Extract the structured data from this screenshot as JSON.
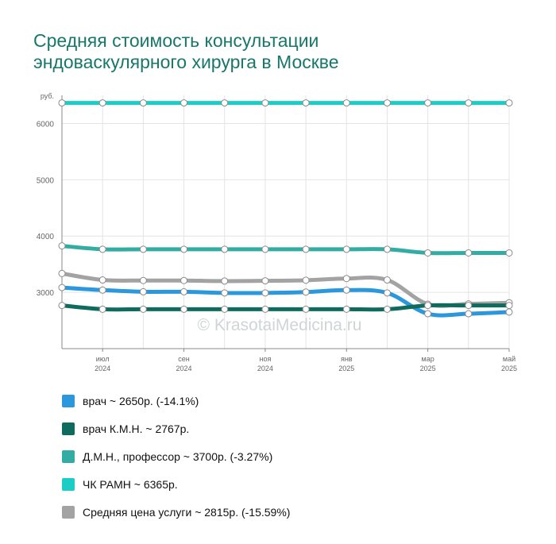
{
  "title_lines": [
    "Средняя стоимость консультации",
    "эндоваскулярного хирурга в Москве"
  ],
  "watermark": "© KrasotaiMedicina.ru",
  "chart_data": {
    "type": "line",
    "y_unit": "руб.",
    "ylim": [
      2000,
      6500
    ],
    "y_ticks": [
      "6000",
      "5000",
      "4000",
      "3000"
    ],
    "x_tick_labels": [
      {
        "month": "июл",
        "year": "2024"
      },
      {
        "month": "сен",
        "year": "2024"
      },
      {
        "month": "ноя",
        "year": "2024"
      },
      {
        "month": "янв",
        "year": "2025"
      },
      {
        "month": "мар",
        "year": "2025"
      },
      {
        "month": "май",
        "year": "2025"
      }
    ],
    "x": [
      "2024-06",
      "2024-07",
      "2024-08",
      "2024-09",
      "2024-10",
      "2024-11",
      "2024-12",
      "2025-01",
      "2025-02",
      "2025-03",
      "2025-04",
      "2025-05"
    ],
    "grid": true,
    "legend_position": "bottom",
    "series": [
      {
        "name": "врач ~ 2650р. (-14.1%)",
        "color": "#2b97dc",
        "values": [
          3085,
          3040,
          3010,
          3010,
          2990,
          2990,
          3005,
          3040,
          2990,
          2620,
          2620,
          2650
        ]
      },
      {
        "name": "врач К.М.Н. ~ 2767р.",
        "color": "#0f6b5e",
        "values": [
          2767,
          2700,
          2700,
          2700,
          2700,
          2700,
          2700,
          2700,
          2700,
          2767,
          2767,
          2767
        ]
      },
      {
        "name": "Д.М.Н., профессор ~ 3700р. (-3.27%)",
        "color": "#33ada3",
        "values": [
          3825,
          3765,
          3765,
          3765,
          3765,
          3765,
          3765,
          3765,
          3765,
          3700,
          3700,
          3700
        ]
      },
      {
        "name": "ЧК РАМН ~ 6365р.",
        "color": "#1ccdc6",
        "values": [
          6365,
          6365,
          6365,
          6365,
          6365,
          6365,
          6365,
          6365,
          6365,
          6365,
          6365,
          6365
        ]
      },
      {
        "name": "Средняя цена услуги ~ 2815р. (-15.59%)",
        "color": "#a3a3a3",
        "values": [
          3335,
          3220,
          3210,
          3210,
          3200,
          3205,
          3215,
          3245,
          3220,
          2790,
          2795,
          2815
        ]
      }
    ]
  }
}
